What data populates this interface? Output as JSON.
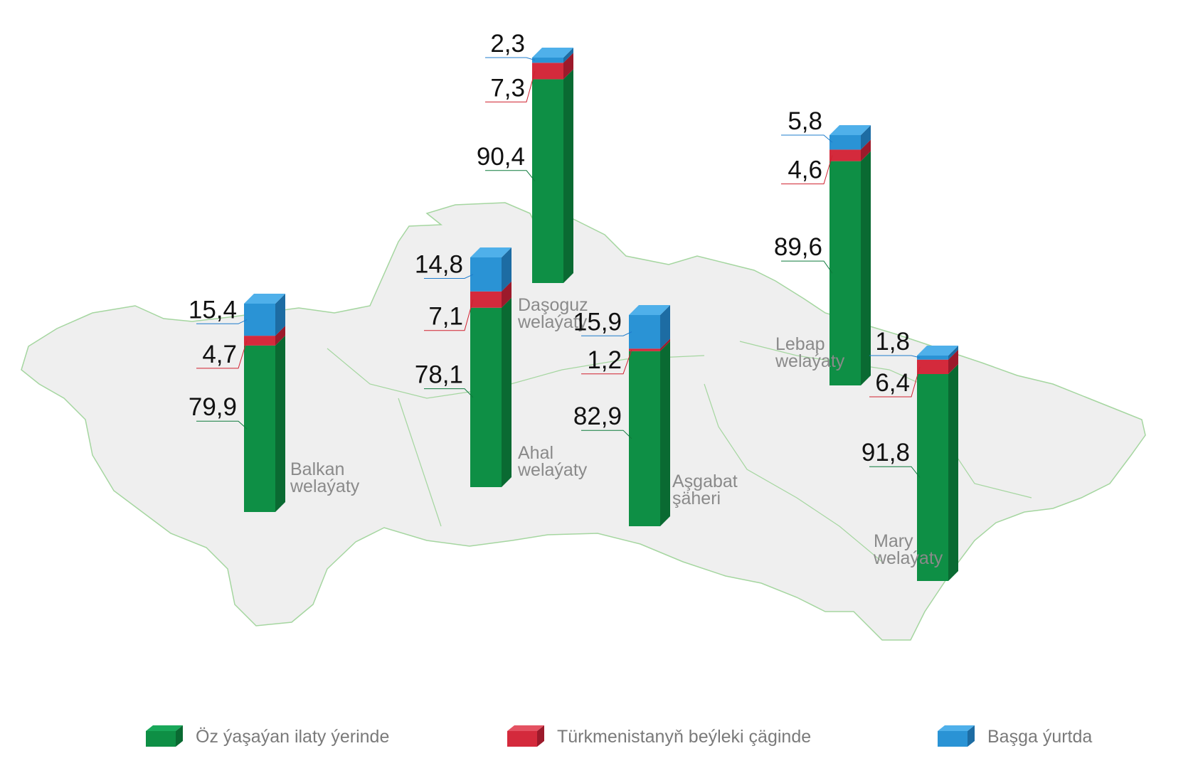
{
  "colors": {
    "green": "#0e8f45",
    "green_side": "#0a6a32",
    "green_top": "#19a85a",
    "red": "#d42a3c",
    "red_side": "#9c1a2b",
    "red_top": "#e45262",
    "blue": "#2a93d5",
    "blue_side": "#1d6ca3",
    "blue_top": "#4fb0ea",
    "map_fill": "#efefef",
    "map_border": "#a5d6a0"
  },
  "legend": {
    "items": [
      {
        "label": "Öz ýaşaýan ilaty ýerinde",
        "color": "green"
      },
      {
        "label": "Türkmenistanyň beýleki çäginde",
        "color": "red"
      },
      {
        "label": "Başga ýurtda",
        "color": "blue"
      }
    ]
  },
  "chart_data": {
    "type": "bar",
    "stacked": true,
    "categories": [
      "Balkan welaýaty",
      "Ahal welaýaty",
      "Daşoguz welaýaty",
      "Aşgabat şäheri",
      "Lebap welaýaty",
      "Mary welaýaty"
    ],
    "category_lines": [
      [
        "Balkan",
        "welaýaty"
      ],
      [
        "Ahal",
        "welaýaty"
      ],
      [
        "Daşoguz",
        "welaýaty"
      ],
      [
        "Aşgabat",
        "şäheri"
      ],
      [
        "Lebap",
        "welaýaty"
      ],
      [
        "Mary",
        "welaýaty"
      ]
    ],
    "series": [
      {
        "name": "Öz ýaşaýan ilaty ýerinde",
        "values": [
          79.9,
          78.1,
          90.4,
          82.9,
          89.6,
          91.8
        ],
        "labels": [
          "79,9",
          "78,1",
          "90,4",
          "82,9",
          "89,6",
          "91,8"
        ]
      },
      {
        "name": "Türkmenistanyň beýleki çäginde",
        "values": [
          4.7,
          7.1,
          7.3,
          1.2,
          4.6,
          6.4
        ],
        "labels": [
          "4,7",
          "7,1",
          "7,3",
          "1,2",
          "4,6",
          "6,4"
        ]
      },
      {
        "name": "Başga ýurtda",
        "values": [
          15.4,
          14.8,
          2.3,
          15.9,
          5.8,
          1.8
        ],
        "labels": [
          "15,4",
          "14,8",
          "2,3",
          "15,9",
          "5,8",
          "1,8"
        ]
      }
    ]
  }
}
